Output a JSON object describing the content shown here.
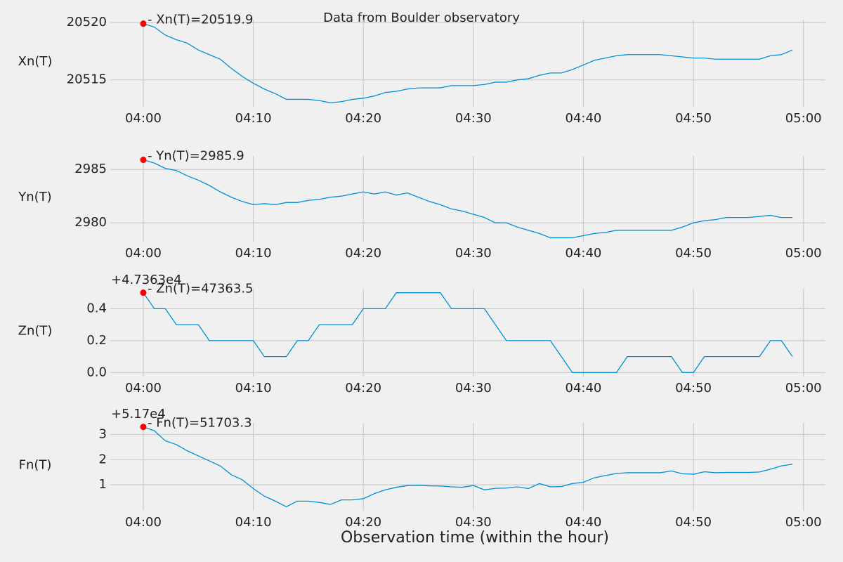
{
  "title": "Data from  Boulder observatory",
  "chart_data": [
    {
      "type": "line",
      "ylabel": "Xn(T)",
      "annotation": "- Xn(T)=20519.9",
      "marker_color": "#ff0000",
      "grid": true,
      "x": [
        "04:00",
        "04:01",
        "04:02",
        "04:03",
        "04:04",
        "04:05",
        "04:06",
        "04:07",
        "04:08",
        "04:09",
        "04:10",
        "04:11",
        "04:12",
        "04:13",
        "04:14",
        "04:15",
        "04:16",
        "04:17",
        "04:18",
        "04:19",
        "04:20",
        "04:21",
        "04:22",
        "04:23",
        "04:24",
        "04:25",
        "04:26",
        "04:27",
        "04:28",
        "04:29",
        "04:30",
        "04:31",
        "04:32",
        "04:33",
        "04:34",
        "04:35",
        "04:36",
        "04:37",
        "04:38",
        "04:39",
        "04:40",
        "04:41",
        "04:42",
        "04:43",
        "04:44",
        "04:45",
        "04:46",
        "04:47",
        "04:48",
        "04:49",
        "04:50",
        "04:51",
        "04:52",
        "04:53",
        "04:54",
        "04:55",
        "04:56",
        "04:57",
        "04:58",
        "04:59"
      ],
      "series": [
        {
          "color": "#008fd5",
          "values": [
            20519.9,
            20519.6,
            20518.9,
            20518.5,
            20518.2,
            20517.6,
            20517.2,
            20516.8,
            20516.0,
            20515.3,
            20514.7,
            20514.2,
            20513.8,
            20513.3,
            20513.3,
            20513.3,
            20513.2,
            20513.0,
            20513.1,
            20513.3,
            20513.4,
            20513.6,
            20513.9,
            20514.0,
            20514.2,
            20514.3,
            20514.3,
            20514.3,
            20514.5,
            20514.5,
            20514.5,
            20514.6,
            20514.8,
            20514.8,
            20515.0,
            20515.1,
            20515.4,
            20515.6,
            20515.6,
            20515.9,
            20516.3,
            20516.7,
            20516.9,
            20517.1,
            20517.2,
            20517.2,
            20517.2,
            20517.2,
            20517.1,
            20517.0,
            20516.9,
            20516.9,
            20516.8,
            20516.8,
            20516.8,
            20516.8,
            20516.8,
            20517.1,
            20517.2,
            20517.6
          ]
        }
      ],
      "xlim": [
        "03:57",
        "05:02"
      ],
      "xticks": [
        "04:00",
        "04:10",
        "04:20",
        "04:30",
        "04:40",
        "04:50",
        "05:00"
      ],
      "ylim": [
        20512.655,
        20520.245
      ],
      "yticks": [
        20515,
        20520
      ]
    },
    {
      "type": "line",
      "ylabel": "Yn(T)",
      "annotation": "- Yn(T)=2985.9",
      "marker_color": "#ff0000",
      "grid": true,
      "x": [
        "04:00",
        "04:01",
        "04:02",
        "04:03",
        "04:04",
        "04:05",
        "04:06",
        "04:07",
        "04:08",
        "04:09",
        "04:10",
        "04:11",
        "04:12",
        "04:13",
        "04:14",
        "04:15",
        "04:16",
        "04:17",
        "04:18",
        "04:19",
        "04:20",
        "04:21",
        "04:22",
        "04:23",
        "04:24",
        "04:25",
        "04:26",
        "04:27",
        "04:28",
        "04:29",
        "04:30",
        "04:31",
        "04:32",
        "04:33",
        "04:34",
        "04:35",
        "04:36",
        "04:37",
        "04:38",
        "04:39",
        "04:40",
        "04:41",
        "04:42",
        "04:43",
        "04:44",
        "04:45",
        "04:46",
        "04:47",
        "04:48",
        "04:49",
        "04:50",
        "04:51",
        "04:52",
        "04:53",
        "04:54",
        "04:55",
        "04:56",
        "04:57",
        "04:58",
        "04:59"
      ],
      "series": [
        {
          "color": "#008fd5",
          "values": [
            2985.9,
            2985.6,
            2985.1,
            2984.9,
            2984.4,
            2984.0,
            2983.5,
            2982.9,
            2982.4,
            2982.0,
            2981.7,
            2981.8,
            2981.7,
            2981.9,
            2981.9,
            2982.1,
            2982.2,
            2982.4,
            2982.5,
            2982.7,
            2982.9,
            2982.7,
            2982.9,
            2982.6,
            2982.8,
            2982.4,
            2982.0,
            2981.7,
            2981.3,
            2981.1,
            2980.8,
            2980.5,
            2980.0,
            2980.0,
            2979.6,
            2979.3,
            2979.0,
            2978.6,
            2978.6,
            2978.6,
            2978.8,
            2979.0,
            2979.1,
            2979.3,
            2979.3,
            2979.3,
            2979.3,
            2979.3,
            2979.3,
            2979.6,
            2980.0,
            2980.2,
            2980.3,
            2980.5,
            2980.5,
            2980.5,
            2980.6,
            2980.7,
            2980.5,
            2980.5
          ]
        }
      ],
      "xlim": [
        "03:57",
        "05:02"
      ],
      "xticks": [
        "04:00",
        "04:10",
        "04:20",
        "04:30",
        "04:40",
        "04:50",
        "05:00"
      ],
      "ylim": [
        2978.235,
        2986.265
      ],
      "yticks": [
        2980,
        2985
      ]
    },
    {
      "type": "line",
      "ylabel": "Zn(T)",
      "annotation": "- Zn(T)=47363.5",
      "offset_text": "+4.7363e4",
      "marker_color": "#ff0000",
      "grid": true,
      "x": [
        "04:00",
        "04:01",
        "04:02",
        "04:03",
        "04:04",
        "04:05",
        "04:06",
        "04:07",
        "04:08",
        "04:09",
        "04:10",
        "04:11",
        "04:12",
        "04:13",
        "04:14",
        "04:15",
        "04:16",
        "04:17",
        "04:18",
        "04:19",
        "04:20",
        "04:21",
        "04:22",
        "04:23",
        "04:24",
        "04:25",
        "04:26",
        "04:27",
        "04:28",
        "04:29",
        "04:30",
        "04:31",
        "04:32",
        "04:33",
        "04:34",
        "04:35",
        "04:36",
        "04:37",
        "04:38",
        "04:39",
        "04:40",
        "04:41",
        "04:42",
        "04:43",
        "04:44",
        "04:45",
        "04:46",
        "04:47",
        "04:48",
        "04:49",
        "04:50",
        "04:51",
        "04:52",
        "04:53",
        "04:54",
        "04:55",
        "04:56",
        "04:57",
        "04:58",
        "04:59"
      ],
      "series": [
        {
          "color": "#008fd5",
          "values": [
            0.5,
            0.4,
            0.4,
            0.3,
            0.3,
            0.3,
            0.2,
            0.2,
            0.2,
            0.2,
            0.2,
            0.1,
            0.1,
            0.1,
            0.2,
            0.2,
            0.3,
            0.3,
            0.3,
            0.3,
            0.4,
            0.4,
            0.4,
            0.5,
            0.5,
            0.5,
            0.5,
            0.5,
            0.4,
            0.4,
            0.4,
            0.4,
            0.3,
            0.2,
            0.2,
            0.2,
            0.2,
            0.2,
            0.1,
            0.0,
            0.0,
            0.0,
            0.0,
            0.0,
            0.1,
            0.1,
            0.1,
            0.1,
            0.1,
            0.0,
            0.0,
            0.1,
            0.1,
            0.1,
            0.1,
            0.1,
            0.1,
            0.2,
            0.2,
            0.1
          ]
        }
      ],
      "xlim": [
        "03:57",
        "05:02"
      ],
      "xticks": [
        "04:00",
        "04:10",
        "04:20",
        "04:30",
        "04:40",
        "04:50",
        "05:00"
      ],
      "ylim": [
        -0.025,
        0.525
      ],
      "yticks": [
        {
          "value": 0,
          "label": "0.0"
        },
        0.2,
        0.4
      ]
    },
    {
      "type": "line",
      "ylabel": "Fn(T)",
      "annotation": "- Fn(T)=51703.3",
      "offset_text": "+5.17e4",
      "marker_color": "#ff0000",
      "grid": true,
      "xlabel": "Observation time (within the hour)",
      "x": [
        "04:00",
        "04:01",
        "04:02",
        "04:03",
        "04:04",
        "04:05",
        "04:06",
        "04:07",
        "04:08",
        "04:09",
        "04:10",
        "04:11",
        "04:12",
        "04:13",
        "04:14",
        "04:15",
        "04:16",
        "04:17",
        "04:18",
        "04:19",
        "04:20",
        "04:21",
        "04:22",
        "04:23",
        "04:24",
        "04:25",
        "04:26",
        "04:27",
        "04:28",
        "04:29",
        "04:30",
        "04:31",
        "04:32",
        "04:33",
        "04:34",
        "04:35",
        "04:36",
        "04:37",
        "04:38",
        "04:39",
        "04:40",
        "04:41",
        "04:42",
        "04:43",
        "04:44",
        "04:45",
        "04:46",
        "04:47",
        "04:48",
        "04:49",
        "04:50",
        "04:51",
        "04:52",
        "04:53",
        "04:54",
        "04:55",
        "04:56",
        "04:57",
        "04:58",
        "04:59"
      ],
      "series": [
        {
          "color": "#008fd5",
          "values": [
            3.3,
            3.15,
            2.75,
            2.6,
            2.35,
            2.15,
            1.95,
            1.75,
            1.4,
            1.2,
            0.85,
            0.55,
            0.35,
            0.13,
            0.35,
            0.35,
            0.3,
            0.22,
            0.4,
            0.4,
            0.45,
            0.65,
            0.8,
            0.9,
            0.97,
            0.98,
            0.96,
            0.95,
            0.92,
            0.9,
            0.97,
            0.8,
            0.86,
            0.87,
            0.92,
            0.85,
            1.05,
            0.92,
            0.93,
            1.05,
            1.1,
            1.28,
            1.37,
            1.45,
            1.48,
            1.48,
            1.48,
            1.48,
            1.55,
            1.44,
            1.42,
            1.52,
            1.48,
            1.49,
            1.49,
            1.49,
            1.51,
            1.62,
            1.75,
            1.82
          ]
        }
      ],
      "xlim": [
        "03:57",
        "05:02"
      ],
      "xticks": [
        "04:00",
        "04:10",
        "04:20",
        "04:30",
        "04:40",
        "04:50",
        "05:00"
      ],
      "ylim": [
        -0.03,
        3.46
      ],
      "yticks": [
        1,
        2,
        3
      ]
    }
  ]
}
